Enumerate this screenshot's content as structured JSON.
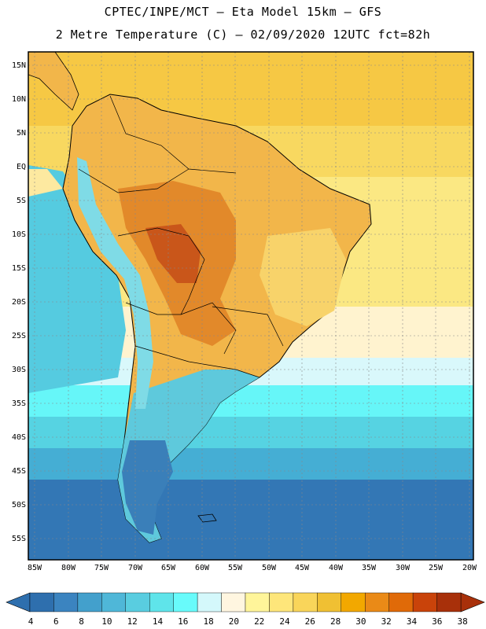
{
  "header": {
    "line1": "CPTEC/INPE/MCT –  Eta Model 15km – GFS",
    "line2": "2 Metre Temperature (C) – 02/09/2020 12UTC fct=82h"
  },
  "axes": {
    "lat_labels": [
      "15N",
      "10N",
      "5N",
      "EQ",
      "5S",
      "10S",
      "15S",
      "20S",
      "25S",
      "30S",
      "35S",
      "40S",
      "45S",
      "50S",
      "55S"
    ],
    "lon_labels": [
      "85W",
      "80W",
      "75W",
      "70W",
      "65W",
      "60W",
      "55W",
      "50W",
      "45W",
      "40W",
      "35W",
      "30W",
      "25W",
      "20W"
    ]
  },
  "colorbar": {
    "values": [
      "4",
      "6",
      "8",
      "10",
      "12",
      "14",
      "16",
      "18",
      "20",
      "22",
      "24",
      "26",
      "28",
      "30",
      "32",
      "34",
      "36",
      "38"
    ],
    "colors": [
      "#2e6fae",
      "#3b84c0",
      "#43a0cc",
      "#4fb7d8",
      "#59cde0",
      "#5fe4ea",
      "#68fbfb",
      "#d4f8fb",
      "#fff6e0",
      "#fff59a",
      "#fee67a",
      "#f9d55a",
      "#f0c033",
      "#f2a800",
      "#ea8a17",
      "#e06a08",
      "#c9430a",
      "#a8300a"
    ]
  }
}
